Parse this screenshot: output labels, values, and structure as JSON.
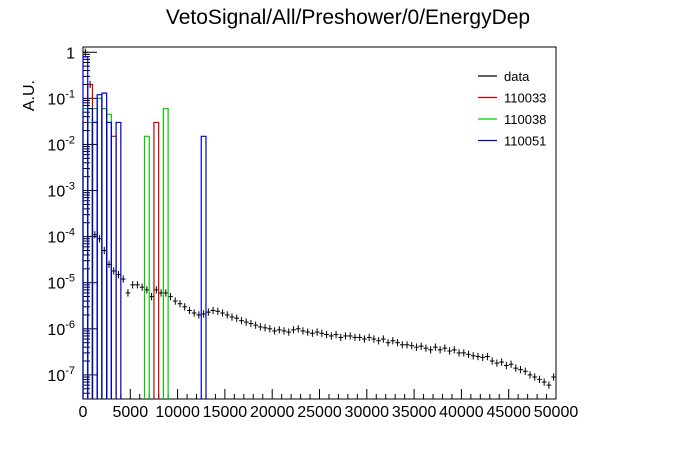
{
  "chart_data": {
    "type": "histogram",
    "title": "VetoSignal/All/Preshower/0/EnergyDep",
    "xlabel": "",
    "ylabel": "A.U.",
    "xlim": [
      0,
      50000
    ],
    "ylim": [
      3e-08,
      1.3
    ],
    "y_scale": "log",
    "grid": false,
    "legend_position": "top-right",
    "x_tick_labels": [
      "0",
      "5000",
      "10000",
      "15000",
      "20000",
      "25000",
      "30000",
      "35000",
      "40000",
      "45000",
      "50000"
    ],
    "x_tick_values": [
      0,
      5000,
      10000,
      15000,
      20000,
      25000,
      30000,
      35000,
      40000,
      45000,
      50000
    ],
    "y_tick_labels": [
      "10^{-7}",
      "10^{-6}",
      "10^{-5}",
      "10^{-4}",
      "10^{-3}",
      "10^{-2}",
      "10^{-1}",
      "1"
    ],
    "y_tick_values": [
      1e-07,
      1e-06,
      1e-05,
      0.0001,
      0.001,
      0.01,
      0.1,
      1
    ],
    "colors": {
      "data": "#000000",
      "110033": "#cc0000",
      "110038": "#00cc00",
      "110051": "#0000cc"
    },
    "series": [
      {
        "name": "data",
        "style": "errorbar",
        "bin_width": 500,
        "x": [
          250,
          750,
          1250,
          1750,
          2250,
          2750,
          3250,
          3750,
          4250,
          4750,
          5250,
          5750,
          6250,
          6750,
          7250,
          7750,
          8250,
          8750,
          9250,
          9750,
          10250,
          10750,
          11250,
          11750,
          12250,
          12750,
          13250,
          13750,
          14250,
          14750,
          15250,
          15750,
          16250,
          16750,
          17250,
          17750,
          18250,
          18750,
          19250,
          19750,
          20250,
          20750,
          21250,
          21750,
          22250,
          22750,
          23250,
          23750,
          24250,
          24750,
          25250,
          25750,
          26250,
          26750,
          27250,
          27750,
          28250,
          28750,
          29250,
          29750,
          30250,
          30750,
          31250,
          31750,
          32250,
          32750,
          33250,
          33750,
          34250,
          34750,
          35250,
          35750,
          36250,
          36750,
          37250,
          37750,
          38250,
          38750,
          39250,
          39750,
          40250,
          40750,
          41250,
          41750,
          42250,
          42750,
          43250,
          43750,
          44250,
          44750,
          45250,
          45750,
          46250,
          46750,
          47250,
          47750,
          48250,
          48750,
          49250,
          49750
        ],
        "y": [
          1.0,
          0.2,
          0.00011,
          9e-05,
          5e-05,
          2.5e-05,
          1.8e-05,
          1.5e-05,
          1.2e-05,
          6e-06,
          9e-06,
          9e-06,
          8e-06,
          7e-06,
          5e-06,
          7e-06,
          6e-06,
          6e-06,
          5e-06,
          4e-06,
          3.5e-06,
          3e-06,
          2.5e-06,
          2.2e-06,
          2e-06,
          2.1e-06,
          2.3e-06,
          2.5e-06,
          2.4e-06,
          2.2e-06,
          2e-06,
          1.8e-06,
          1.7e-06,
          1.5e-06,
          1.4e-06,
          1.3e-06,
          1.2e-06,
          1.1e-06,
          1.05e-06,
          1e-06,
          9e-07,
          9.5e-07,
          9e-07,
          8.5e-07,
          9.5e-07,
          1e-06,
          9e-07,
          8.5e-07,
          8e-07,
          8.5e-07,
          8e-07,
          7.5e-07,
          7e-07,
          7.5e-07,
          6.5e-07,
          7e-07,
          7e-07,
          6.5e-07,
          6.5e-07,
          6e-07,
          6.5e-07,
          6e-07,
          5.5e-07,
          6e-07,
          5e-07,
          5.5e-07,
          5e-07,
          4.5e-07,
          4.5e-07,
          4.3e-07,
          4e-07,
          4.2e-07,
          3.8e-07,
          3.5e-07,
          4e-07,
          3.5e-07,
          3.8e-07,
          3.3e-07,
          3.5e-07,
          3e-07,
          3e-07,
          2.8e-07,
          2.6e-07,
          2.5e-07,
          2.4e-07,
          2.5e-07,
          2e-07,
          1.8e-07,
          1.9e-07,
          1.6e-07,
          1.7e-07,
          1.4e-07,
          1.3e-07,
          1.2e-07,
          1e-07,
          9e-08,
          8e-08,
          7e-08,
          6e-08,
          9e-08
        ]
      },
      {
        "name": "110033",
        "style": "step",
        "bins": [
          {
            "x0": 0,
            "x1": 500,
            "y": 0.03
          },
          {
            "x0": 500,
            "x1": 1000,
            "y": 0.2
          },
          {
            "x0": 1000,
            "x1": 1500,
            "y": 0.03
          },
          {
            "x0": 2000,
            "x1": 2500,
            "y": 0.06
          },
          {
            "x0": 2500,
            "x1": 3000,
            "y": 0.03
          },
          {
            "x0": 3000,
            "x1": 3500,
            "y": 0.015
          },
          {
            "x0": 7500,
            "x1": 8000,
            "y": 0.03
          }
        ]
      },
      {
        "name": "110038",
        "style": "step",
        "bins": [
          {
            "x0": 0,
            "x1": 500,
            "y": 0.06
          },
          {
            "x0": 500,
            "x1": 1000,
            "y": 0.03
          },
          {
            "x0": 1000,
            "x1": 1500,
            "y": 0.06
          },
          {
            "x0": 1500,
            "x1": 2000,
            "y": 0.1
          },
          {
            "x0": 2000,
            "x1": 2500,
            "y": 0.06
          },
          {
            "x0": 2500,
            "x1": 3000,
            "y": 0.045
          },
          {
            "x0": 6500,
            "x1": 7000,
            "y": 0.015
          },
          {
            "x0": 8500,
            "x1": 9000,
            "y": 0.06
          }
        ]
      },
      {
        "name": "110051",
        "style": "step",
        "bins": [
          {
            "x0": 0,
            "x1": 500,
            "y": 0.8
          },
          {
            "x0": 500,
            "x1": 1000,
            "y": 0.06
          },
          {
            "x0": 1000,
            "x1": 1500,
            "y": 0.03
          },
          {
            "x0": 1500,
            "x1": 2000,
            "y": 0.12
          },
          {
            "x0": 2000,
            "x1": 2500,
            "y": 0.13
          },
          {
            "x0": 2500,
            "x1": 3000,
            "y": 0.03
          },
          {
            "x0": 3500,
            "x1": 4000,
            "y": 0.03
          },
          {
            "x0": 12500,
            "x1": 13000,
            "y": 0.015
          }
        ]
      }
    ]
  }
}
